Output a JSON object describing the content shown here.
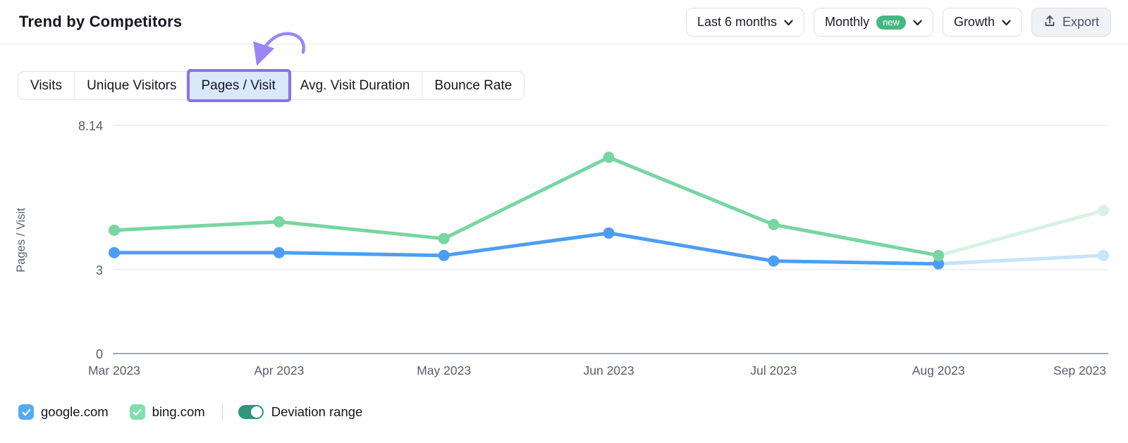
{
  "header": {
    "title": "Trend by Competitors"
  },
  "toolbar": {
    "dropdowns": [
      {
        "label": "Last 6 months"
      },
      {
        "label": "Monthly",
        "badge": "new"
      },
      {
        "label": "Growth"
      }
    ],
    "export": {
      "label": "Export",
      "icon": "upload-icon"
    }
  },
  "tabs": {
    "items": [
      {
        "label": "Visits",
        "active": false
      },
      {
        "label": "Unique Visitors",
        "active": false
      },
      {
        "label": "Pages / Visit",
        "active": true
      },
      {
        "label": "Avg. Visit Duration",
        "active": false
      },
      {
        "label": "Bounce Rate",
        "active": false
      }
    ],
    "active_label": "Pages / Visit",
    "active_highlight_color": "#8a70ec",
    "annotation_arrow_color": "#9b86f3"
  },
  "chart_data": {
    "type": "line",
    "title": "",
    "xlabel": "",
    "ylabel": "Pages / Visit",
    "x": [
      "Mar 2023",
      "Apr 2023",
      "May 2023",
      "Jun 2023",
      "Jul 2023",
      "Aug 2023",
      "Sep 2023"
    ],
    "yticks": [
      {
        "label": "8.14",
        "value": 8.14
      },
      {
        "label": "3",
        "value": 3
      },
      {
        "label": "0",
        "value": 0
      }
    ],
    "ylim": [
      0,
      8.14
    ],
    "grid": true,
    "legend_position": "bottom-left",
    "projected_from_index": 5,
    "series": [
      {
        "name": "google.com",
        "color": "#4d9ef2",
        "faded_color": "#c6e4fa",
        "values": [
          3.6,
          3.6,
          3.5,
          4.3,
          3.3,
          3.2,
          3.5
        ],
        "last_segment_projected": true
      },
      {
        "name": "bing.com",
        "color": "#77d6a1",
        "faded_color": "#d7f2e3",
        "values": [
          4.4,
          4.7,
          4.1,
          7.0,
          4.6,
          3.5,
          5.1
        ],
        "last_segment_projected": true
      }
    ]
  },
  "legend": {
    "series_toggles": [
      {
        "label": "google.com",
        "checked": true,
        "color": "#55aaf5"
      },
      {
        "label": "bing.com",
        "checked": true,
        "color": "#80e0ab"
      }
    ],
    "deviation_toggle": {
      "label": "Deviation range",
      "on": true,
      "color": "#2f957b"
    }
  }
}
